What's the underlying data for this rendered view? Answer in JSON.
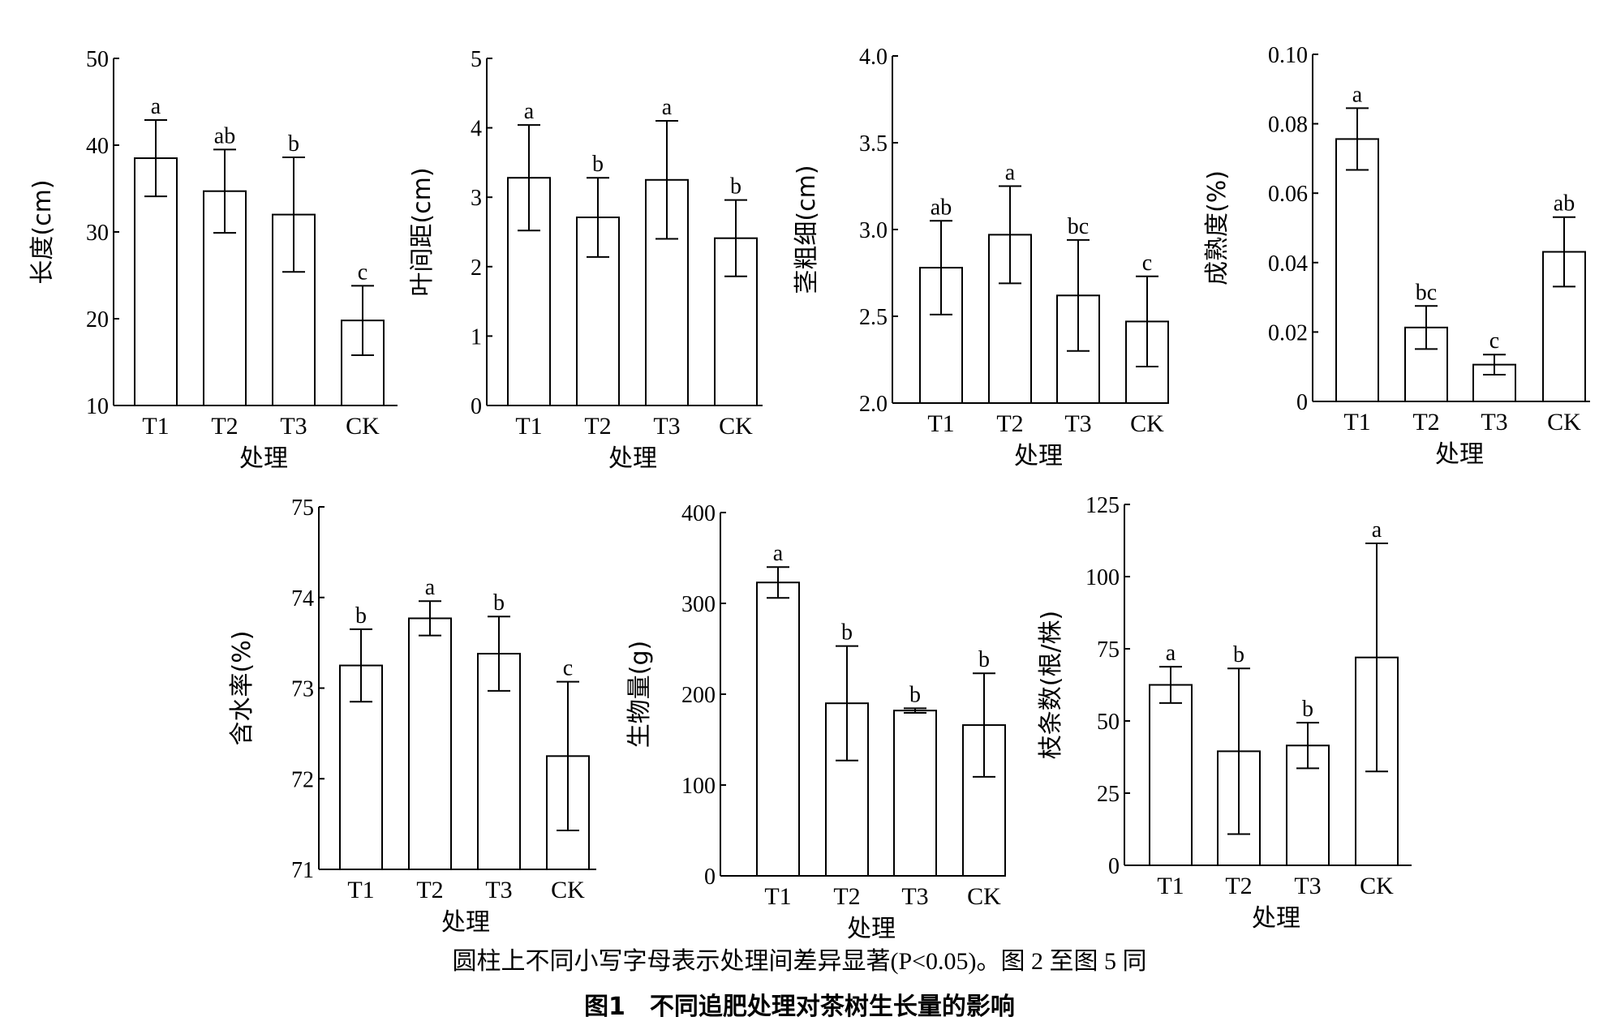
{
  "figure": {
    "note": "圆柱上不同小写字母表示处理间差异显著(P<0.05)。图 2 至图 5 同",
    "title": "图1　不同追肥处理对茶树生长量的影响"
  },
  "chart_data": [
    {
      "type": "bar",
      "ylabel": "长度(cm)",
      "xlabel": "处理",
      "categories": [
        "T1",
        "T2",
        "T3",
        "CK"
      ],
      "values": [
        38.5,
        34.7,
        32.0,
        19.8
      ],
      "errors": [
        4.4,
        4.8,
        6.6,
        4.0
      ],
      "letters": [
        "a",
        "ab",
        "b",
        "c"
      ],
      "ylim": [
        10,
        50
      ],
      "yticks": [
        10,
        20,
        30,
        40,
        50
      ],
      "ytick_labels": [
        "10",
        "20",
        "30",
        "40",
        "50"
      ]
    },
    {
      "type": "bar",
      "ylabel": "叶间距(cm)",
      "xlabel": "处理",
      "categories": [
        "T1",
        "T2",
        "T3",
        "CK"
      ],
      "values": [
        3.28,
        2.71,
        3.25,
        2.41
      ],
      "errors": [
        0.76,
        0.57,
        0.85,
        0.55
      ],
      "letters": [
        "a",
        "b",
        "a",
        "b"
      ],
      "ylim": [
        0,
        5
      ],
      "yticks": [
        0,
        1,
        2,
        3,
        4,
        5
      ],
      "ytick_labels": [
        "0",
        "1",
        "2",
        "3",
        "4",
        "5"
      ]
    },
    {
      "type": "bar",
      "ylabel": "茎粗细(cm)",
      "xlabel": "处理",
      "categories": [
        "T1",
        "T2",
        "T3",
        "CK"
      ],
      "values": [
        2.78,
        2.97,
        2.62,
        2.47
      ],
      "errors": [
        0.27,
        0.28,
        0.32,
        0.26
      ],
      "letters": [
        "ab",
        "a",
        "bc",
        "c"
      ],
      "ylim": [
        2.0,
        4.0
      ],
      "yticks": [
        2.0,
        2.5,
        3.0,
        3.5,
        4.0
      ],
      "ytick_labels": [
        "2.0",
        "2.5",
        "3.0",
        "3.5",
        "4.0"
      ]
    },
    {
      "type": "bar",
      "ylabel": "成熟度(%)",
      "xlabel": "处理",
      "categories": [
        "T1",
        "T2",
        "T3",
        "CK"
      ],
      "values": [
        0.0756,
        0.0213,
        0.0106,
        0.0431
      ],
      "errors": [
        0.0089,
        0.0062,
        0.0029,
        0.01
      ],
      "letters": [
        "a",
        "bc",
        "c",
        "ab"
      ],
      "ylim": [
        0,
        0.1
      ],
      "yticks": [
        0,
        0.02,
        0.04,
        0.06,
        0.08,
        0.1
      ],
      "ytick_labels": [
        "0",
        "0.02",
        "0.04",
        "0.06",
        "0.08",
        "0.10"
      ]
    },
    {
      "type": "bar",
      "ylabel": "含水率(%)",
      "xlabel": "处理",
      "categories": [
        "T1",
        "T2",
        "T3",
        "CK"
      ],
      "values": [
        73.25,
        73.77,
        73.38,
        72.25
      ],
      "errors": [
        0.4,
        0.19,
        0.41,
        0.82
      ],
      "letters": [
        "b",
        "a",
        "b",
        "c"
      ],
      "ylim": [
        71,
        75
      ],
      "yticks": [
        71,
        72,
        73,
        74,
        75
      ],
      "ytick_labels": [
        "71",
        "72",
        "73",
        "74",
        "75"
      ]
    },
    {
      "type": "bar",
      "ylabel": "生物量(g)",
      "xlabel": "处理",
      "categories": [
        "T1",
        "T2",
        "T3",
        "CK"
      ],
      "values": [
        323,
        190,
        182,
        166
      ],
      "errors": [
        17,
        63,
        2.5,
        57
      ],
      "letters": [
        "a",
        "b",
        "b",
        "b"
      ],
      "ylim": [
        0,
        400
      ],
      "yticks": [
        0,
        100,
        200,
        300,
        400
      ],
      "ytick_labels": [
        "0",
        "100",
        "200",
        "300",
        "400"
      ]
    },
    {
      "type": "bar",
      "ylabel": "枝条数(根/株)",
      "xlabel": "处理",
      "categories": [
        "T1",
        "T2",
        "T3",
        "CK"
      ],
      "values": [
        62.5,
        39.5,
        41.5,
        72.0
      ],
      "errors": [
        6.3,
        28.7,
        7.9,
        39.5
      ],
      "letters": [
        "a",
        "b",
        "b",
        "a"
      ],
      "ylim": [
        0,
        125
      ],
      "yticks": [
        0,
        25,
        50,
        75,
        100,
        125
      ],
      "ytick_labels": [
        "0",
        "25",
        "50",
        "75",
        "100",
        "125"
      ]
    }
  ]
}
